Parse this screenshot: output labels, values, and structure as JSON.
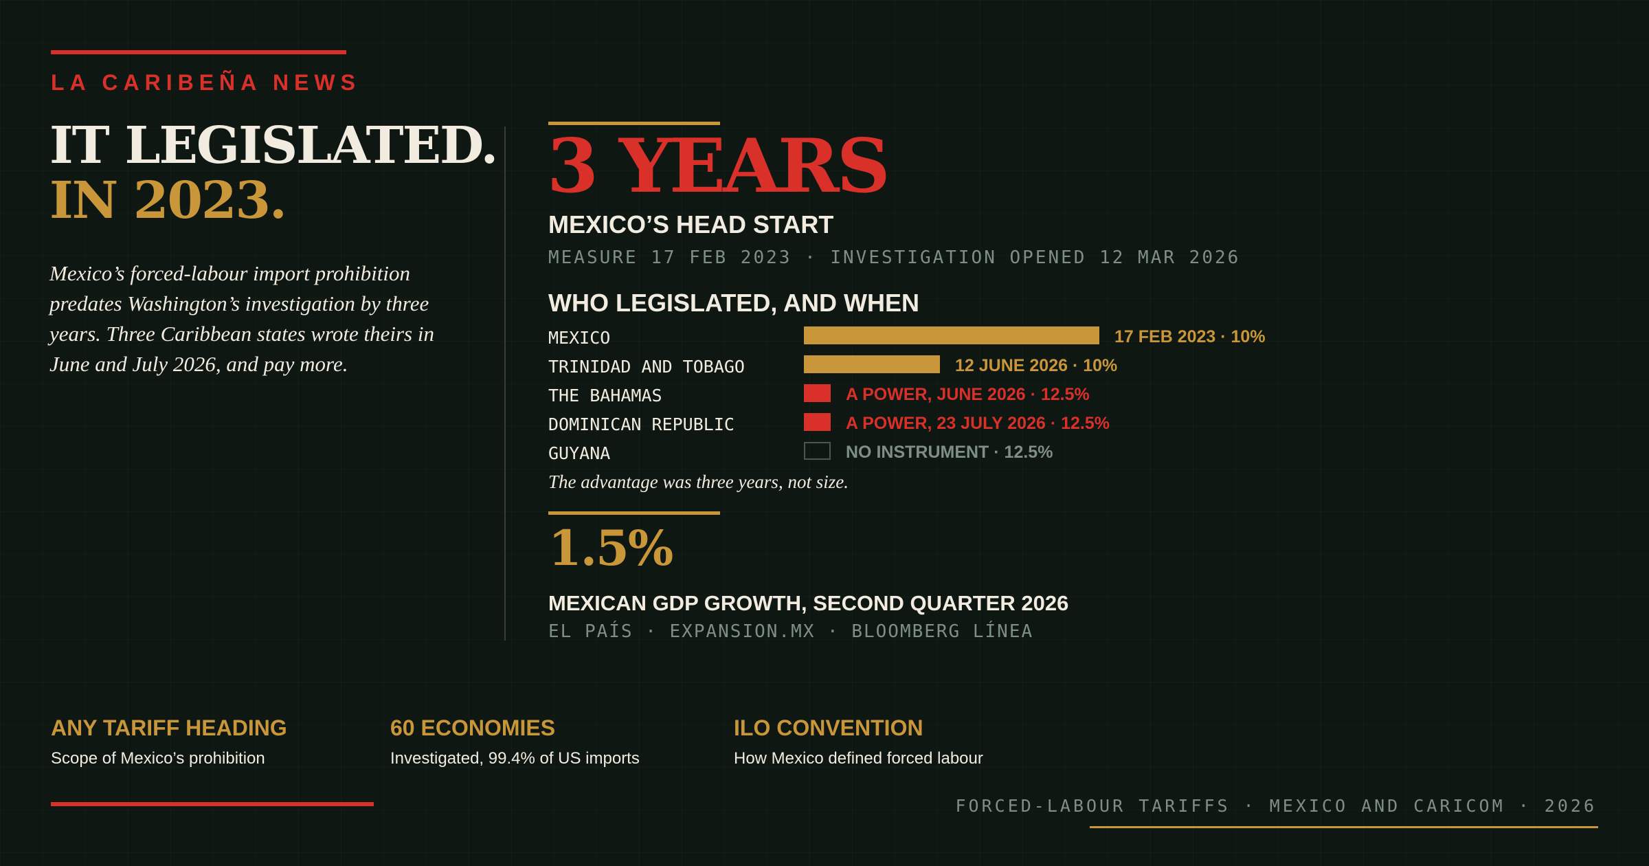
{
  "brand": "LA CARIBEÑA NEWS",
  "headline": {
    "line1": "IT LEGISLATED.",
    "line2": "IN 2023."
  },
  "lede": "Mexico’s forced-labour import prohibition predates Washington’s investigation by three years. Three Caribbean states wrote theirs in June and July 2026, and pay more.",
  "stat_main": {
    "value": "3 YEARS",
    "title": "MEXICO’S HEAD START",
    "detail": "MEASURE 17 FEB 2023 · INVESTIGATION OPENED 12 MAR 2026"
  },
  "chart_data": {
    "type": "bar",
    "title": "WHO LEGISLATED, AND WHEN",
    "rows": [
      {
        "country": "MEXICO",
        "label": "17 FEB 2023 · 10%",
        "value": 1.0,
        "color": "#c9963a",
        "style": "solid"
      },
      {
        "country": "TRINIDAD AND TOBAGO",
        "label": "12 JUNE 2026 · 10%",
        "value": 0.46,
        "color": "#c9963a",
        "style": "solid"
      },
      {
        "country": "THE BAHAMAS",
        "label": "A POWER, JUNE 2026 · 12.5%",
        "value": 0.09,
        "color": "#d9302a",
        "style": "solid"
      },
      {
        "country": "DOMINICAN REPUBLIC",
        "label": "A POWER, 23 JULY 2026 · 12.5%",
        "value": 0.09,
        "color": "#d9302a",
        "style": "solid"
      },
      {
        "country": "GUYANA",
        "label": "NO INSTRUMENT · 12.5%",
        "value": 0.09,
        "color": "#7e8f83",
        "style": "hollow"
      }
    ],
    "note": "The advantage was three years, not size."
  },
  "stat_gdp": {
    "value": "1.5%",
    "title": "MEXICAN GDP GROWTH, SECOND QUARTER 2026",
    "sources": "EL PAÍS · EXPANSION.MX · BLOOMBERG LÍNEA"
  },
  "bottom_stats": [
    {
      "title": "ANY TARIFF HEADING",
      "caption": "Scope of Mexico’s prohibition"
    },
    {
      "title": "60 ECONOMIES",
      "caption": "Investigated, 99.4% of US imports"
    },
    {
      "title": "ILO CONVENTION",
      "caption": "How Mexico defined forced labour"
    }
  ],
  "footer": "FORCED-LABOUR TARIFFS · MEXICO AND CARICOM · 2026",
  "colors": {
    "red": "#d9302a",
    "gold": "#c9963a",
    "muted": "#7e8f83",
    "background": "#0e1712"
  }
}
